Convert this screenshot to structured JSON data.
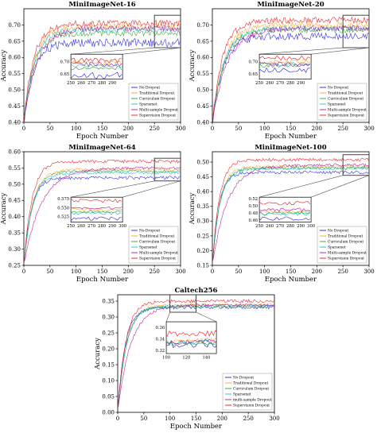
{
  "legend_labels": [
    "No Dropout",
    "Traditional Dropout",
    "Curriculum Dropout",
    "Sparsenet",
    "Multi-sample Dropout",
    "Supervision Dropout"
  ],
  "legend_labels_caltech": [
    "No Dropout",
    "Traditional Dropout",
    "Curriculum Dropout",
    "Sparsenet",
    "multi-sample Dropout",
    "Supervision Dropout"
  ],
  "colors": [
    "#1f1fd8",
    "#f5a623",
    "#2ca02c",
    "#17becf",
    "#b0139e",
    "#e8141a"
  ],
  "chart_data": [
    {
      "type": "line",
      "title": "MiniImageNet-16",
      "xlabel": "Epoch Number",
      "ylabel": "Accuracy",
      "xlim": [
        0,
        300
      ],
      "ylim": [
        0.4,
        0.75
      ],
      "xticks": [
        "0",
        "50",
        "100",
        "150",
        "200",
        "250",
        "300"
      ],
      "yticks": [
        "0.40",
        "0.45",
        "0.50",
        "0.55",
        "0.60",
        "0.65",
        "0.70"
      ],
      "plateau": [
        0.645,
        0.695,
        0.675,
        0.685,
        0.69,
        0.705
      ],
      "start": [
        0.4,
        0.4,
        0.4,
        0.4,
        0.4,
        0.4
      ],
      "rate": [
        0.055,
        0.05,
        0.05,
        0.05,
        0.04,
        0.055
      ],
      "noise": [
        0.013,
        0.009,
        0.009,
        0.008,
        0.009,
        0.01
      ],
      "inset": {
        "xlim": [
          250,
          300
        ],
        "ylim": [
          0.63,
          0.73
        ],
        "xticks": [
          "250",
          "260",
          "270",
          "280",
          "290"
        ],
        "yticks": [
          "0.65",
          "0.70"
        ]
      }
    },
    {
      "type": "line",
      "title": "MiniImageNet-20",
      "xlabel": "Epoch Number",
      "ylabel": "Accuracy",
      "xlim": [
        0,
        300
      ],
      "ylim": [
        0.4,
        0.75
      ],
      "xticks": [
        "0",
        "50",
        "100",
        "150",
        "200",
        "250",
        "300"
      ],
      "yticks": [
        "0.40",
        "0.45",
        "0.50",
        "0.55",
        "0.60",
        "0.65",
        "0.70"
      ],
      "plateau": [
        0.665,
        0.7,
        0.685,
        0.69,
        0.69,
        0.715
      ],
      "start": [
        0.4,
        0.4,
        0.4,
        0.4,
        0.4,
        0.4
      ],
      "rate": [
        0.05,
        0.045,
        0.045,
        0.045,
        0.035,
        0.05
      ],
      "noise": [
        0.011,
        0.009,
        0.009,
        0.008,
        0.009,
        0.01
      ],
      "inset": {
        "xlim": [
          250,
          300
        ],
        "ylim": [
          0.63,
          0.73
        ],
        "xticks": [
          "250",
          "260",
          "270",
          "280",
          "290"
        ],
        "yticks": [
          "0.65",
          "0.70"
        ]
      }
    },
    {
      "type": "line",
      "title": "MiniImageNet-64",
      "xlabel": "Epoch Number",
      "ylabel": "Accuracy",
      "xlim": [
        0,
        300
      ],
      "ylim": [
        0.25,
        0.6
      ],
      "xticks": [
        "0",
        "50",
        "100",
        "150",
        "200",
        "250",
        "300"
      ],
      "yticks": [
        "0.25",
        "0.30",
        "0.35",
        "0.40",
        "0.45",
        "0.50",
        "0.55",
        "0.60"
      ],
      "plateau": [
        0.52,
        0.545,
        0.54,
        0.535,
        0.55,
        0.57
      ],
      "start": [
        0.25,
        0.25,
        0.25,
        0.25,
        0.25,
        0.25
      ],
      "rate": [
        0.07,
        0.06,
        0.06,
        0.06,
        0.03,
        0.065
      ],
      "noise": [
        0.005,
        0.004,
        0.004,
        0.004,
        0.004,
        0.005
      ],
      "inset": {
        "xlim": [
          250,
          300
        ],
        "ylim": [
          0.51,
          0.58
        ],
        "xticks": [
          "250",
          "260",
          "270",
          "280",
          "290",
          "300"
        ],
        "yticks": [
          "0.525",
          "0.550",
          "0.575"
        ]
      }
    },
    {
      "type": "line",
      "title": "MiniImageNet-100",
      "xlabel": "Epoch Number",
      "ylabel": "Accuracy",
      "xlim": [
        0,
        300
      ],
      "ylim": [
        0.15,
        0.535
      ],
      "xticks": [
        "0",
        "50",
        "100",
        "150",
        "200",
        "250",
        "300"
      ],
      "yticks": [
        "0.15",
        "0.20",
        "0.25",
        "0.30",
        "0.35",
        "0.40",
        "0.45",
        "0.50"
      ],
      "plateau": [
        0.465,
        0.485,
        0.48,
        0.478,
        0.49,
        0.508
      ],
      "start": [
        0.15,
        0.15,
        0.15,
        0.15,
        0.15,
        0.15
      ],
      "rate": [
        0.08,
        0.07,
        0.07,
        0.07,
        0.035,
        0.075
      ],
      "noise": [
        0.005,
        0.005,
        0.005,
        0.005,
        0.005,
        0.005
      ],
      "inset": {
        "xlim": [
          250,
          300
        ],
        "ylim": [
          0.455,
          0.525
        ],
        "xticks": [
          "250",
          "260",
          "270",
          "280",
          "290",
          "300"
        ],
        "yticks": [
          "0.46",
          "0.48",
          "0.50",
          "0.52"
        ]
      }
    },
    {
      "type": "line",
      "title": "Caltech256",
      "xlabel": "Epoch Number",
      "ylabel": "Accuracy",
      "xlim": [
        0,
        300
      ],
      "ylim": [
        0.0,
        0.37
      ],
      "xticks": [
        "0",
        "50",
        "100",
        "150",
        "200",
        "250",
        "300"
      ],
      "yticks": [
        "0.00",
        "0.05",
        "0.10",
        "0.15",
        "0.20",
        "0.25",
        "0.30",
        "0.35"
      ],
      "plateau": [
        0.33,
        0.338,
        0.333,
        0.335,
        0.338,
        0.35
      ],
      "start": [
        0.0,
        0.0,
        0.0,
        0.0,
        0.0,
        0.0
      ],
      "rate": [
        0.07,
        0.06,
        0.06,
        0.06,
        0.04,
        0.065
      ],
      "noise": [
        0.005,
        0.004,
        0.004,
        0.004,
        0.004,
        0.005
      ],
      "inset": {
        "xlim": [
          100,
          150
        ],
        "ylim": [
          0.315,
          0.37
        ],
        "xticks": [
          "100",
          "120",
          "140"
        ],
        "yticks": [
          "0.32",
          "0.34",
          "0.36"
        ]
      }
    }
  ]
}
